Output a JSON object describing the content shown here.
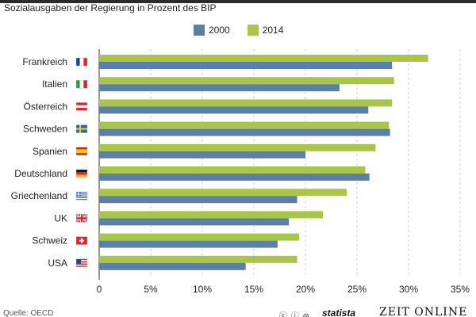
{
  "header": {
    "subtitle": "Sozialausgaben der Regierung in Prozent des BIP"
  },
  "legend": {
    "items": [
      {
        "label": "2000",
        "color": "#5b7fa6"
      },
      {
        "label": "2014",
        "color": "#a9c64a"
      }
    ]
  },
  "footer": {
    "source": "Quelle: OECD",
    "cc_icons": "ⓒ ⓘ ⊜",
    "brand_statista": "statista",
    "brand_zeit": "ZEIT ONLINE"
  },
  "chart_data": {
    "type": "bar",
    "orientation": "horizontal",
    "subtitle": "Sozialausgaben der Regierung in Prozent des BIP",
    "categories": [
      "Frankreich",
      "Italien",
      "Österreich",
      "Schweden",
      "Spanien",
      "Deutschland",
      "Griechenland",
      "UK",
      "Schweiz",
      "USA"
    ],
    "flags": [
      "fr",
      "it",
      "at",
      "se",
      "es",
      "de",
      "gr",
      "uk",
      "ch",
      "us"
    ],
    "series": [
      {
        "name": "2014",
        "color": "#a9c64a",
        "values": [
          31.9,
          28.6,
          28.4,
          28.1,
          26.8,
          25.8,
          24.0,
          21.7,
          19.4,
          19.2
        ]
      },
      {
        "name": "2000",
        "color": "#5b7fa6",
        "values": [
          28.4,
          23.3,
          26.1,
          28.2,
          20.0,
          26.2,
          19.2,
          18.4,
          17.3,
          14.2
        ]
      }
    ],
    "xlim": [
      0,
      35
    ],
    "xticks": [
      0,
      5,
      10,
      15,
      20,
      25,
      30,
      35
    ],
    "xtick_labels": [
      "0",
      "5%",
      "10%",
      "15%",
      "20%",
      "25%",
      "30%",
      "35%"
    ],
    "grid": "vertical dashed",
    "legend_position": "top"
  }
}
